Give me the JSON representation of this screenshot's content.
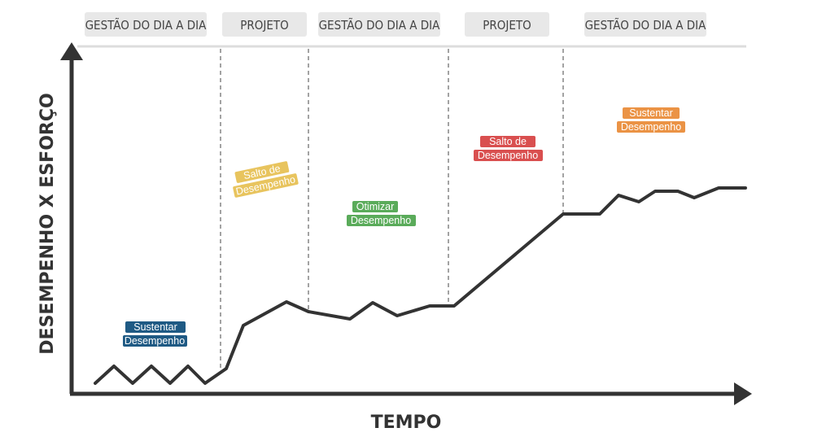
{
  "phases": [
    {
      "label": "GESTÃO DO DIA A DIA"
    },
    {
      "label": "PROJETO"
    },
    {
      "label": "GESTÃO DO DIA A DIA"
    },
    {
      "label": "PROJETO"
    },
    {
      "label": "GESTÃO DO DIA A DIA"
    }
  ],
  "axes": {
    "y_title": "DESEMPENHO X ESFORÇO",
    "x_title": "TEMPO"
  },
  "tags": [
    {
      "line1": "Sustentar",
      "line2": "Desempenho",
      "color": "#1f5a84"
    },
    {
      "line1": "Salto de",
      "line2": "Desempenho",
      "color": "#e8c45e"
    },
    {
      "line1": "Otimizar",
      "line2": "Desempenho",
      "color": "#5aab5a"
    },
    {
      "line1": "Salto de",
      "line2": "Desempenho",
      "color": "#d94f4f"
    },
    {
      "line1": "Sustentar",
      "line2": "Desempenho",
      "color": "#eb9345"
    }
  ],
  "colors": {
    "axis": "#333333",
    "phase_box": "#e8e8e8",
    "divider": "#666666"
  }
}
